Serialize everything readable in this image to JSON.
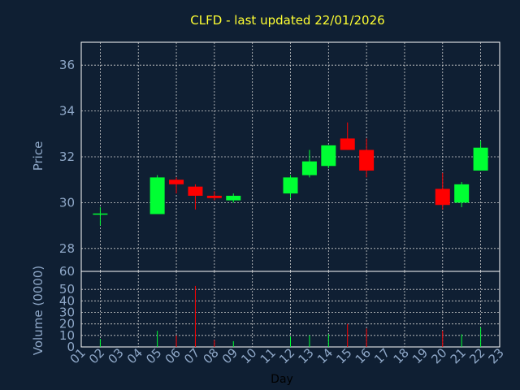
{
  "chart_data": {
    "type": "candlestick",
    "title": "CLFD - last updated 22/01/2026",
    "price_axis": {
      "label": "Price",
      "ylim": [
        27,
        37
      ],
      "ticks": [
        28,
        30,
        32,
        34,
        36
      ]
    },
    "volume_axis": {
      "label": "Volume (0000)",
      "ylim": [
        0,
        60
      ],
      "ticks": [
        0,
        10,
        20,
        30,
        40,
        50,
        60
      ]
    },
    "xlabel": "Day",
    "x_ticks": [
      "01",
      "02",
      "03",
      "04",
      "05",
      "06",
      "07",
      "08",
      "09",
      "10",
      "11",
      "12",
      "13",
      "14",
      "15",
      "16",
      "17",
      "18",
      "19",
      "20",
      "21",
      "22",
      "23"
    ],
    "grid": true,
    "colors": {
      "up": "#00ff33",
      "down": "#ff0000",
      "background": "#0f1f33",
      "title": "#ffff33",
      "axis_text": "#8fa8c8"
    },
    "candles": [
      {
        "day": "02",
        "open": 29.5,
        "high": 29.8,
        "low": 29.0,
        "close": 29.5,
        "volume": 7
      },
      {
        "day": "05",
        "open": 29.5,
        "high": 31.2,
        "low": 29.5,
        "close": 31.1,
        "volume": 14
      },
      {
        "day": "06",
        "open": 31.0,
        "high": 31.1,
        "low": 30.4,
        "close": 30.8,
        "volume": 10
      },
      {
        "day": "07",
        "open": 30.7,
        "high": 30.8,
        "low": 29.7,
        "close": 30.3,
        "volume": 53
      },
      {
        "day": "08",
        "open": 30.3,
        "high": 30.5,
        "low": 30.1,
        "close": 30.2,
        "volume": 6
      },
      {
        "day": "09",
        "open": 30.1,
        "high": 30.4,
        "low": 30.0,
        "close": 30.3,
        "volume": 5
      },
      {
        "day": "12",
        "open": 30.4,
        "high": 31.2,
        "low": 30.2,
        "close": 31.1,
        "volume": 9
      },
      {
        "day": "13",
        "open": 31.2,
        "high": 32.3,
        "low": 31.1,
        "close": 31.8,
        "volume": 10
      },
      {
        "day": "14",
        "open": 31.6,
        "high": 32.5,
        "low": 31.5,
        "close": 32.5,
        "volume": 11
      },
      {
        "day": "15",
        "open": 32.8,
        "high": 33.5,
        "low": 32.3,
        "close": 32.3,
        "volume": 20
      },
      {
        "day": "16",
        "open": 32.3,
        "high": 32.8,
        "low": 31.1,
        "close": 31.4,
        "volume": 16
      },
      {
        "day": "20",
        "open": 30.6,
        "high": 31.3,
        "low": 29.7,
        "close": 29.9,
        "volume": 14
      },
      {
        "day": "21",
        "open": 30.0,
        "high": 30.9,
        "low": 29.8,
        "close": 30.8,
        "volume": 11
      },
      {
        "day": "22",
        "open": 31.4,
        "high": 32.7,
        "low": 31.4,
        "close": 32.4,
        "volume": 17
      }
    ]
  }
}
